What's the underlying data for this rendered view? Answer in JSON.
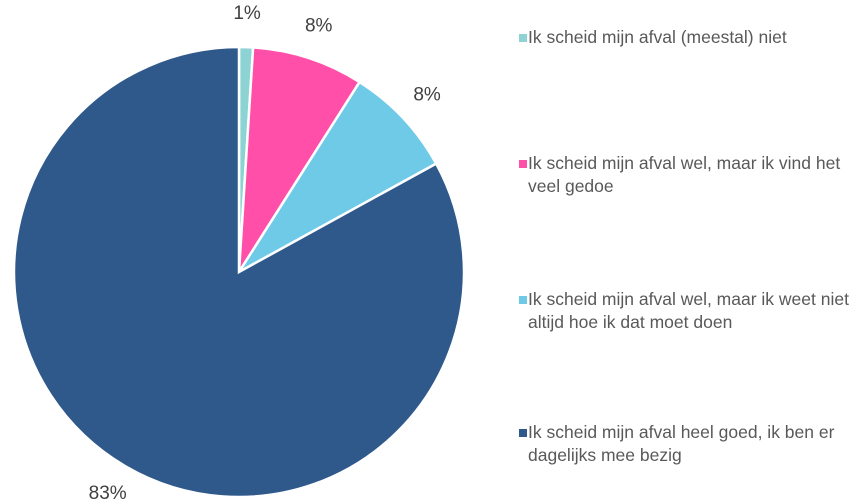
{
  "chart_data": {
    "type": "pie",
    "categories": [
      "Ik scheid mijn afval (meestal) niet",
      "Ik scheid mijn afval wel, maar ik vind het veel gedoe",
      "Ik scheid mijn afval wel, maar ik weet niet altijd hoe ik dat moet doen",
      "Ik scheid mijn afval heel goed, ik ben er dagelijks mee bezig"
    ],
    "values": [
      1,
      8,
      8,
      83
    ],
    "value_labels": [
      "1%",
      "8%",
      "8%",
      "83%"
    ],
    "colors": [
      "#8dd3d4",
      "#ff4fa9",
      "#6fcae8",
      "#30598b"
    ],
    "legend": "right"
  }
}
